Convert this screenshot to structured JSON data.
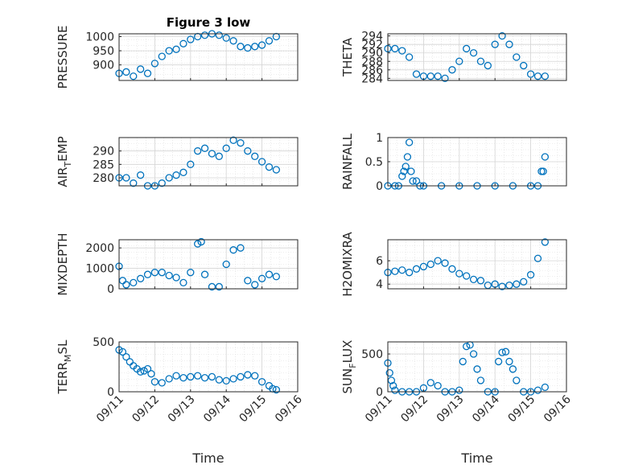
{
  "chart_data": {
    "type": "scatter",
    "title": "Figure 3 low",
    "xlabel": "Time",
    "x_ticks": [
      "09/11",
      "09/12",
      "09/13",
      "09/14",
      "09/15",
      "09/16"
    ],
    "xlim": [
      0,
      5
    ],
    "marker_color": "#0072BD",
    "grid_color": "#dddddd",
    "panels": [
      {
        "id": "pressure",
        "ylabel": "PRESSURE",
        "ylabel_main": "PRESSURE",
        "ylabel_sub": "",
        "ylabel_rest": "",
        "title": "Figure 3 low",
        "ylim": [
          845,
          1010
        ],
        "yticks": [
          900,
          950,
          1000
        ],
        "x": [
          0.0,
          0.2,
          0.4,
          0.6,
          0.8,
          1.0,
          1.2,
          1.4,
          1.6,
          1.8,
          2.0,
          2.2,
          2.4,
          2.6,
          2.8,
          3.0,
          3.2,
          3.4,
          3.6,
          3.8,
          4.0,
          4.2,
          4.4
        ],
        "y": [
          870,
          875,
          860,
          885,
          870,
          905,
          930,
          950,
          955,
          975,
          990,
          1000,
          1005,
          1010,
          1005,
          995,
          985,
          965,
          960,
          965,
          970,
          985,
          1000
        ]
      },
      {
        "id": "theta",
        "ylabel": "THETA",
        "ylabel_main": "THETA",
        "ylabel_sub": "",
        "ylabel_rest": "",
        "title": "",
        "ylim": [
          283.5,
          294.5
        ],
        "yticks": [
          284,
          286,
          288,
          290,
          292,
          294
        ],
        "x": [
          0.0,
          0.2,
          0.4,
          0.6,
          0.8,
          1.0,
          1.2,
          1.4,
          1.6,
          1.8,
          2.0,
          2.2,
          2.4,
          2.6,
          2.8,
          3.0,
          3.2,
          3.4,
          3.6,
          3.8,
          4.0,
          4.2,
          4.4
        ],
        "y": [
          291,
          291,
          290.5,
          289,
          285,
          284.5,
          284.5,
          284.5,
          284,
          286,
          288,
          291,
          290,
          288,
          287,
          292,
          294,
          292,
          289,
          287,
          285,
          284.5,
          284.5
        ]
      },
      {
        "id": "air_temp",
        "ylabel": "AIR_TEMP",
        "ylabel_main": "AIR",
        "ylabel_sub": "T",
        "ylabel_rest": "EMP",
        "title": "",
        "ylim": [
          277,
          295
        ],
        "yticks": [
          280,
          285,
          290
        ],
        "x": [
          0.0,
          0.2,
          0.4,
          0.6,
          0.8,
          1.0,
          1.2,
          1.4,
          1.6,
          1.8,
          2.0,
          2.2,
          2.4,
          2.6,
          2.8,
          3.0,
          3.2,
          3.4,
          3.6,
          3.8,
          4.0,
          4.2,
          4.4
        ],
        "y": [
          280,
          280,
          278,
          281,
          277,
          277,
          278,
          280,
          281,
          282,
          285,
          290,
          291,
          289,
          288,
          291,
          294,
          293,
          290,
          288,
          286,
          284,
          283
        ]
      },
      {
        "id": "rainfall",
        "ylabel": "RAINFALL",
        "ylabel_main": "RAINFALL",
        "ylabel_sub": "",
        "ylabel_rest": "",
        "title": "",
        "ylim": [
          0,
          1
        ],
        "yticks": [
          0,
          0.5,
          1
        ],
        "x": [
          0.0,
          0.2,
          0.3,
          0.4,
          0.45,
          0.5,
          0.55,
          0.6,
          0.65,
          0.7,
          0.8,
          0.9,
          1.0,
          1.5,
          2.0,
          2.5,
          3.0,
          3.5,
          4.0,
          4.2,
          4.3,
          4.35,
          4.4
        ],
        "y": [
          0,
          0,
          0,
          0.2,
          0.3,
          0.4,
          0.6,
          0.9,
          0.3,
          0.1,
          0.1,
          0,
          0,
          0,
          0,
          0,
          0,
          0,
          0,
          0,
          0.3,
          0.3,
          0.6
        ]
      },
      {
        "id": "mixdepth",
        "ylabel": "MIXDEPTH",
        "ylabel_main": "MIXDEPTH",
        "ylabel_sub": "",
        "ylabel_rest": "",
        "title": "",
        "ylim": [
          0,
          2400
        ],
        "yticks": [
          0,
          1000,
          2000
        ],
        "x": [
          0.0,
          0.1,
          0.2,
          0.4,
          0.6,
          0.8,
          1.0,
          1.2,
          1.4,
          1.6,
          1.8,
          2.0,
          2.2,
          2.3,
          2.4,
          2.6,
          2.8,
          3.0,
          3.2,
          3.4,
          3.6,
          3.8,
          4.0,
          4.2,
          4.4
        ],
        "y": [
          1100,
          400,
          200,
          300,
          500,
          700,
          800,
          800,
          650,
          550,
          300,
          800,
          2200,
          2300,
          700,
          100,
          100,
          1200,
          1900,
          2000,
          400,
          200,
          500,
          700,
          600
        ]
      },
      {
        "id": "h2omixra",
        "ylabel": "H2OMIXRA",
        "ylabel_main": "H2OMIXRA",
        "ylabel_sub": "",
        "ylabel_rest": "",
        "title": "",
        "ylim": [
          3.6,
          7.8
        ],
        "yticks": [
          4,
          6
        ],
        "x": [
          0.0,
          0.2,
          0.4,
          0.6,
          0.8,
          1.0,
          1.2,
          1.4,
          1.6,
          1.8,
          2.0,
          2.2,
          2.4,
          2.6,
          2.8,
          3.0,
          3.2,
          3.4,
          3.6,
          3.8,
          4.0,
          4.2,
          4.4
        ],
        "y": [
          5.0,
          5.1,
          5.2,
          5.0,
          5.3,
          5.5,
          5.7,
          6.0,
          5.8,
          5.3,
          4.9,
          4.7,
          4.4,
          4.3,
          3.9,
          4.0,
          3.8,
          3.9,
          4.0,
          4.2,
          4.8,
          6.2,
          7.6
        ]
      },
      {
        "id": "terr_msl",
        "ylabel": "TERR_MSL",
        "ylabel_main": "TERR",
        "ylabel_sub": "M",
        "ylabel_rest": "SL",
        "title": "",
        "ylim": [
          0,
          500
        ],
        "yticks": [
          0,
          500
        ],
        "x": [
          0.0,
          0.1,
          0.2,
          0.3,
          0.4,
          0.5,
          0.6,
          0.7,
          0.8,
          0.9,
          1.0,
          1.2,
          1.4,
          1.6,
          1.8,
          2.0,
          2.2,
          2.4,
          2.6,
          2.8,
          3.0,
          3.2,
          3.4,
          3.6,
          3.8,
          4.0,
          4.2,
          4.3,
          4.4
        ],
        "y": [
          420,
          400,
          350,
          300,
          260,
          230,
          200,
          210,
          230,
          180,
          100,
          90,
          130,
          160,
          140,
          150,
          160,
          140,
          150,
          120,
          110,
          130,
          150,
          170,
          160,
          100,
          60,
          30,
          20
        ]
      },
      {
        "id": "sun_flux",
        "ylabel": "SUN_FLUX",
        "ylabel_main": "SUN",
        "ylabel_sub": "F",
        "ylabel_rest": "LUX",
        "title": "",
        "ylim": [
          0,
          660
        ],
        "yticks": [
          0,
          500
        ],
        "x": [
          0.0,
          0.05,
          0.1,
          0.15,
          0.2,
          0.4,
          0.6,
          0.8,
          1.0,
          1.2,
          1.4,
          1.6,
          1.8,
          2.0,
          2.1,
          2.2,
          2.3,
          2.4,
          2.5,
          2.6,
          2.8,
          3.0,
          3.1,
          3.2,
          3.3,
          3.4,
          3.5,
          3.6,
          3.8,
          4.0,
          4.2,
          4.4
        ],
        "y": [
          380,
          250,
          150,
          80,
          20,
          0,
          0,
          0,
          50,
          120,
          80,
          0,
          0,
          20,
          400,
          600,
          620,
          500,
          300,
          150,
          0,
          0,
          400,
          520,
          530,
          400,
          300,
          150,
          0,
          0,
          20,
          60
        ]
      }
    ]
  }
}
